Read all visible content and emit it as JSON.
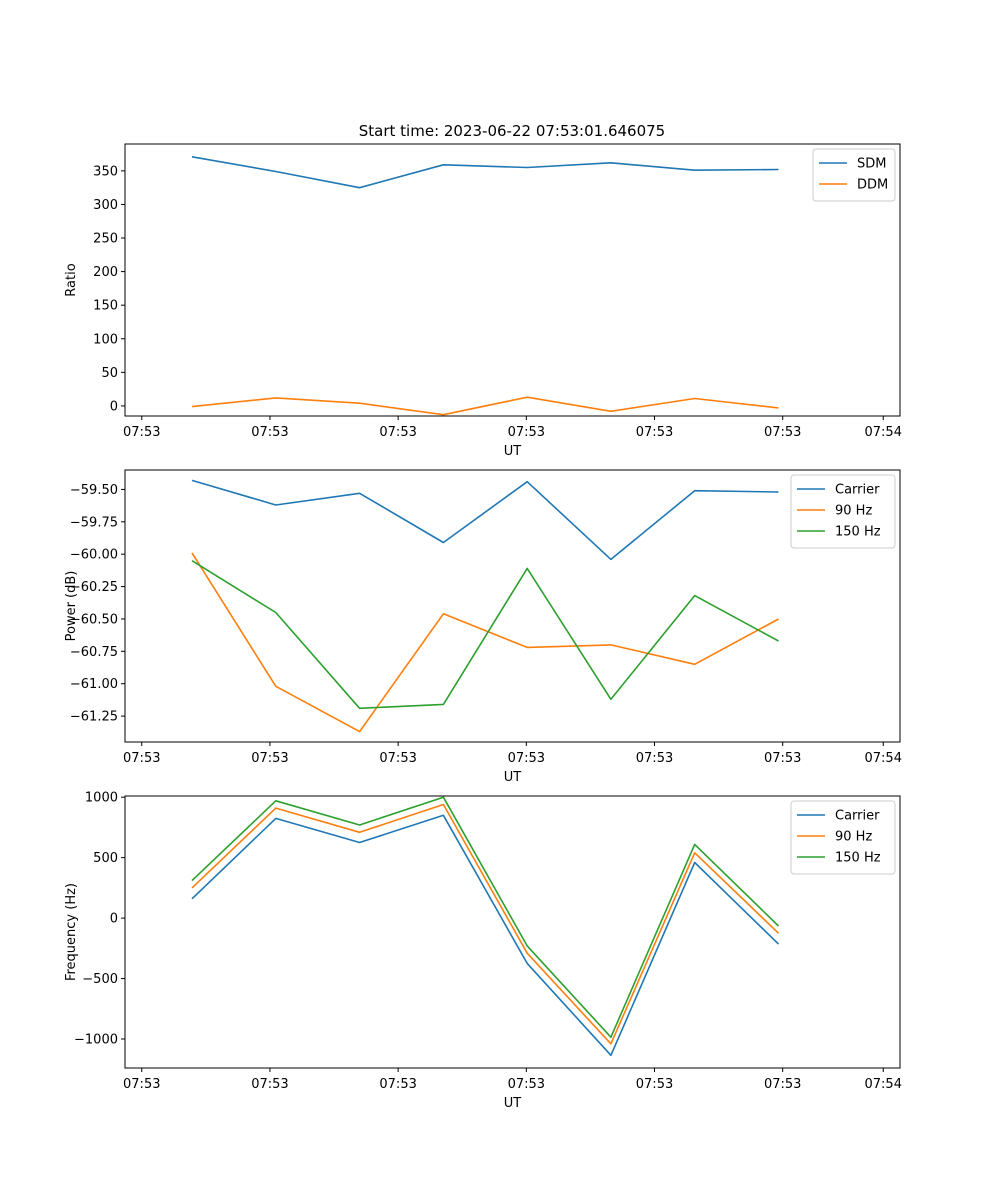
{
  "figure_title": "Start time: 2023-06-22 07:53:01.646075",
  "chart_data": [
    {
      "type": "line",
      "xlabel": "UT",
      "ylabel": "Ratio",
      "x_tick_labels": [
        "07:53",
        "07:53",
        "07:53",
        "07:53",
        "07:53",
        "07:53",
        "07:54"
      ],
      "yticks": [
        0,
        50,
        100,
        150,
        200,
        250,
        300,
        350
      ],
      "y_tick_labels": [
        "0",
        "50",
        "100",
        "150",
        "200",
        "250",
        "300",
        "350"
      ],
      "ylim": [
        -15,
        390
      ],
      "x": [
        1,
        2,
        3,
        4,
        5,
        6,
        7,
        8
      ],
      "legend": "top-right",
      "grid": false,
      "series": [
        {
          "name": "SDM",
          "color": "#1f77b4",
          "values": [
            371,
            349,
            325,
            359,
            355,
            362,
            351,
            352
          ]
        },
        {
          "name": "DDM",
          "color": "#ff7f0e",
          "values": [
            -1,
            12,
            4,
            -13,
            13,
            -8,
            11,
            -3
          ]
        }
      ]
    },
    {
      "type": "line",
      "xlabel": "UT",
      "ylabel": "Power (dB)",
      "x_tick_labels": [
        "07:53",
        "07:53",
        "07:53",
        "07:53",
        "07:53",
        "07:53",
        "07:54"
      ],
      "yticks": [
        -61.25,
        -61.0,
        -60.75,
        -60.5,
        -60.25,
        -60.0,
        -59.75,
        -59.5
      ],
      "y_tick_labels": [
        "−61.25",
        "−61.00",
        "−60.75",
        "−60.50",
        "−60.25",
        "−60.00",
        "−59.75",
        "−59.50"
      ],
      "ylim": [
        -61.45,
        -59.35
      ],
      "x": [
        1,
        2,
        3,
        4,
        5,
        6,
        7,
        8
      ],
      "legend": "top-right",
      "grid": false,
      "series": [
        {
          "name": "Carrier",
          "color": "#1f77b4",
          "values": [
            -59.43,
            -59.62,
            -59.53,
            -59.91,
            -59.44,
            -60.04,
            -59.51,
            -59.52
          ]
        },
        {
          "name": "90 Hz",
          "color": "#ff7f0e",
          "values": [
            -59.99,
            -61.02,
            -61.37,
            -60.46,
            -60.72,
            -60.7,
            -60.85,
            -60.5
          ]
        },
        {
          "name": "150 Hz",
          "color": "#2ca02c",
          "values": [
            -60.05,
            -60.45,
            -61.19,
            -61.16,
            -60.11,
            -61.12,
            -60.32,
            -60.67
          ]
        }
      ]
    },
    {
      "type": "line",
      "xlabel": "UT",
      "ylabel": "Frequency (Hz)",
      "x_tick_labels": [
        "07:53",
        "07:53",
        "07:53",
        "07:53",
        "07:53",
        "07:53",
        "07:54"
      ],
      "yticks": [
        -1000,
        -500,
        0,
        500,
        1000
      ],
      "y_tick_labels": [
        "−1000",
        "−500",
        "0",
        "500",
        "1000"
      ],
      "ylim": [
        -1240,
        1010
      ],
      "x": [
        1,
        2,
        3,
        4,
        5,
        6,
        7,
        8
      ],
      "legend": "top-right",
      "grid": false,
      "series": [
        {
          "name": "Carrier",
          "color": "#1f77b4",
          "values": [
            160,
            825,
            625,
            850,
            -375,
            -1135,
            460,
            -215
          ]
        },
        {
          "name": "90 Hz",
          "color": "#ff7f0e",
          "values": [
            250,
            910,
            710,
            940,
            -290,
            -1040,
            540,
            -125
          ]
        },
        {
          "name": "150 Hz",
          "color": "#2ca02c",
          "values": [
            310,
            970,
            770,
            1000,
            -230,
            -985,
            610,
            -65
          ]
        }
      ]
    }
  ]
}
